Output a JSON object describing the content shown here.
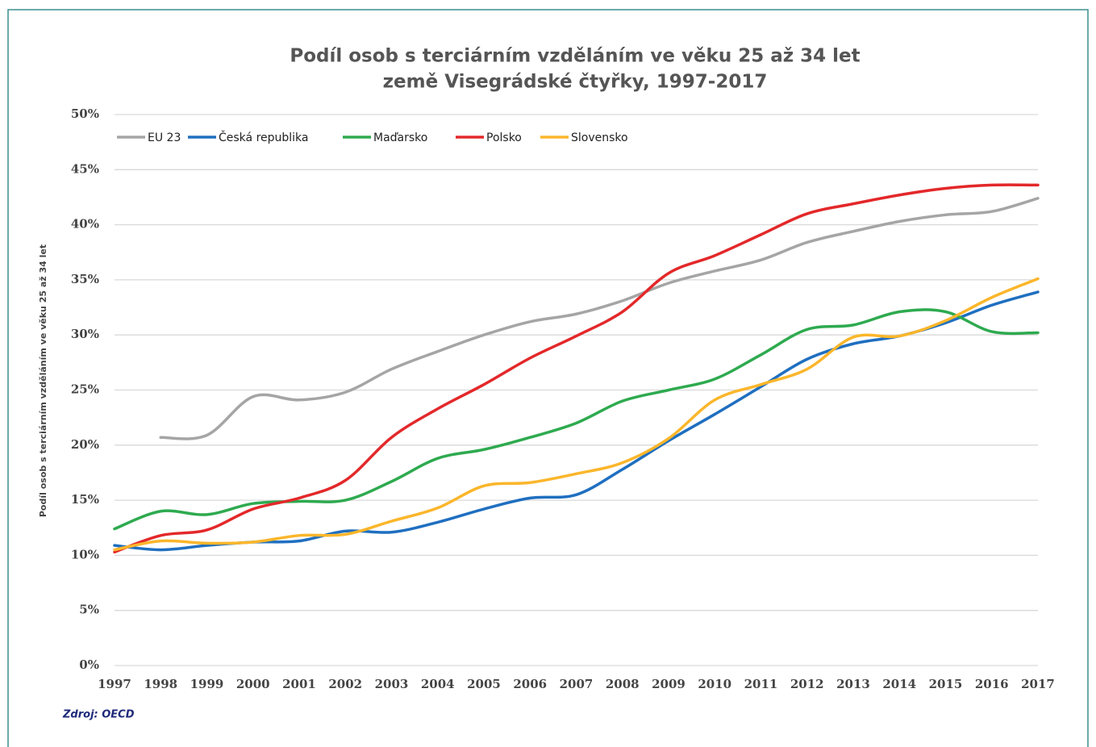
{
  "chart_data": {
    "type": "line",
    "title": "Podíl osob s terciárním vzděláním ve věku 25 až 34 let",
    "subtitle": "země Visegrádské čtyřky, 1997-2017",
    "y_label": "Podíl osob s terciárním vzděláním ve věku 25 až 34 let",
    "source": "Zdroj: OECD",
    "x": [
      1997,
      1998,
      1999,
      2000,
      2001,
      2002,
      2003,
      2004,
      2005,
      2006,
      2007,
      2008,
      2009,
      2010,
      2011,
      2012,
      2013,
      2014,
      2015,
      2016,
      2017
    ],
    "xlim": [
      1997,
      2017
    ],
    "xticks": [
      1997,
      1998,
      1999,
      2000,
      2001,
      2002,
      2003,
      2004,
      2005,
      2006,
      2007,
      2008,
      2009,
      2010,
      2011,
      2012,
      2013,
      2014,
      2015,
      2016,
      2017
    ],
    "ylim": [
      0,
      50
    ],
    "yticks": [
      {
        "value": 0,
        "label": "0%"
      },
      {
        "value": 5,
        "label": "5%"
      },
      {
        "value": 10,
        "label": "10%"
      },
      {
        "value": 15,
        "label": "15%"
      },
      {
        "value": 20,
        "label": "20%"
      },
      {
        "value": 25,
        "label": "25%"
      },
      {
        "value": 30,
        "label": "30%"
      },
      {
        "value": 35,
        "label": "35%"
      },
      {
        "value": 40,
        "label": "40%"
      },
      {
        "value": 45,
        "label": "45%"
      },
      {
        "value": 50,
        "label": "50%"
      }
    ],
    "grid": true,
    "legend": "top",
    "series": [
      {
        "name": "EU 23",
        "color": "#a5a5a5",
        "values": [
          null,
          20.7,
          20.9,
          24.4,
          24.1,
          24.8,
          26.9,
          28.5,
          30.0,
          31.2,
          31.9,
          33.1,
          34.7,
          35.8,
          36.8,
          38.4,
          39.4,
          40.3,
          40.9,
          41.2,
          42.4
        ]
      },
      {
        "name": "Česká republika",
        "color": "#1f6fc0",
        "values": [
          10.9,
          10.5,
          10.9,
          11.2,
          11.3,
          12.2,
          12.1,
          13.0,
          14.2,
          15.2,
          15.5,
          17.8,
          20.4,
          22.8,
          25.3,
          27.8,
          29.2,
          29.9,
          31.1,
          32.7,
          33.9
        ]
      },
      {
        "name": "Maďarsko",
        "color": "#2eaa4f",
        "values": [
          12.4,
          14.0,
          13.7,
          14.7,
          14.9,
          15.0,
          16.7,
          18.8,
          19.6,
          20.7,
          22.0,
          24.0,
          25.0,
          26.0,
          28.2,
          30.5,
          30.9,
          32.1,
          32.1,
          30.3,
          30.2
        ]
      },
      {
        "name": "Polsko",
        "color": "#e3282a",
        "values": [
          10.3,
          11.8,
          12.3,
          14.2,
          15.2,
          16.8,
          20.7,
          23.3,
          25.5,
          27.9,
          29.9,
          32.1,
          35.6,
          37.2,
          39.1,
          41.0,
          41.9,
          42.7,
          43.3,
          43.6,
          43.6
        ]
      },
      {
        "name": "Slovensko",
        "color": "#fbb62b",
        "values": [
          10.5,
          11.3,
          11.1,
          11.2,
          11.8,
          11.9,
          13.1,
          14.3,
          16.3,
          16.6,
          17.4,
          18.4,
          20.6,
          24.1,
          25.5,
          26.9,
          29.8,
          29.9,
          31.3,
          33.4,
          35.1
        ]
      }
    ]
  }
}
